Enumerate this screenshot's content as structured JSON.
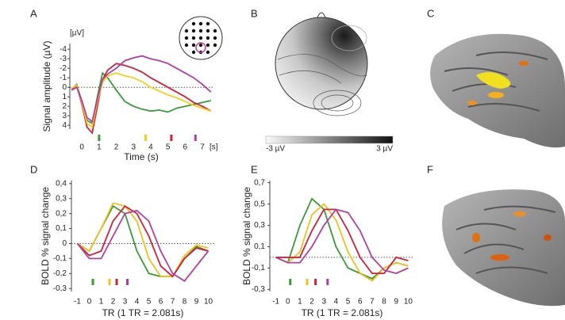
{
  "panel_labels": [
    "A",
    "B",
    "C",
    "D",
    "E",
    "F"
  ],
  "chart_data": [
    {
      "type": "line",
      "x_label": "Time (s)",
      "y_label": "Signal amplitude (µV)",
      "x_unit": "[s]",
      "y_unit": "[µV]",
      "invert_y": true,
      "xlim": [
        -0.7,
        7.6
      ],
      "ylim": [
        -4.6,
        4.4
      ],
      "xticks": [
        0,
        1,
        2,
        3,
        4,
        5,
        6,
        7
      ],
      "yticks": [
        -4,
        -3,
        -2,
        -1,
        0,
        1,
        2,
        3,
        4
      ],
      "x": [
        -0.6,
        -0.3,
        0,
        0.3,
        0.6,
        0.9,
        1.2,
        1.5,
        2,
        2.5,
        3,
        3.5,
        4,
        4.5,
        5,
        5.5,
        6,
        6.5,
        7,
        7.5
      ],
      "series": [
        {
          "color": "#3a9a3a",
          "values": [
            0.2,
            -0.3,
            1.5,
            3.5,
            3.8,
            1,
            -1.5,
            -1,
            0.3,
            1.5,
            2,
            2.3,
            2.5,
            2.4,
            2.6,
            2.2,
            2,
            1.8,
            1.6,
            1.4
          ]
        },
        {
          "color": "#d0203a",
          "values": [
            0.2,
            -0.2,
            1.8,
            4.2,
            4.8,
            2,
            -0.8,
            -1.8,
            -2.5,
            -2.3,
            -2,
            -1.6,
            -1,
            -0.5,
            0,
            0.5,
            1,
            1.6,
            2,
            2.5
          ]
        },
        {
          "color": "#f0d020",
          "values": [
            0.1,
            -0.2,
            1.6,
            3.8,
            4.2,
            1.5,
            -0.5,
            -1.2,
            -1.5,
            -1.2,
            -1,
            -0.6,
            0,
            0.4,
            0.8,
            1.1,
            1.5,
            1.9,
            2.2,
            2.5
          ]
        },
        {
          "color": "#b040a0",
          "values": [
            0.3,
            0,
            1.4,
            3.2,
            3.6,
            1.2,
            -0.8,
            -1.4,
            -2,
            -2.8,
            -3.1,
            -3.3,
            -3,
            -2.8,
            -2.5,
            -2,
            -1.5,
            -1,
            -0.3,
            0.5
          ]
        }
      ],
      "markers": [
        {
          "x": 1,
          "color": "#3a9a3a"
        },
        {
          "x": 3.7,
          "color": "#f0d020"
        },
        {
          "x": 5.2,
          "color": "#d0203a"
        },
        {
          "x": 6.6,
          "color": "#b040a0"
        }
      ]
    },
    {
      "type": "topomap",
      "clim": [
        -3,
        3
      ],
      "colorbar_ticks": [
        {
          "value": -3,
          "label": "-3 µV"
        },
        {
          "value": 3,
          "label": "3 µV"
        }
      ]
    },
    {
      "type": "line",
      "x_label": "TR (1 TR = 2.081s)",
      "y_label": "BOLD % signal change",
      "xlim": [
        -1.5,
        10.5
      ],
      "ylim": [
        -0.32,
        0.42
      ],
      "xticks": [
        -1,
        0,
        1,
        2,
        3,
        4,
        5,
        6,
        7,
        8,
        9,
        10
      ],
      "yticks": [
        {
          "value": 0.4,
          "label": "0,4"
        },
        {
          "value": 0.3,
          "label": "0,3"
        },
        {
          "value": 0.2,
          "label": "0,2"
        },
        {
          "value": 0.1,
          "label": "0,1"
        },
        0,
        {
          "value": -0.1,
          "label": "-0,1"
        },
        {
          "value": -0.2,
          "label": "-0,2"
        },
        {
          "value": -0.3,
          "label": "-0,3"
        }
      ],
      "x": [
        -1,
        0,
        1,
        2,
        3,
        4,
        5,
        6,
        7,
        8,
        9,
        10
      ],
      "series": [
        {
          "color": "#3a9a3a",
          "values": [
            0,
            -0.05,
            0.1,
            0.25,
            0.2,
            -0.05,
            -0.2,
            -0.22,
            -0.22,
            -0.1,
            -0.02,
            -0.05
          ]
        },
        {
          "color": "#f0c020",
          "values": [
            0,
            -0.05,
            0.1,
            0.27,
            0.25,
            0.15,
            -0.1,
            -0.22,
            -0.22,
            -0.08,
            -0.01,
            -0.03
          ]
        },
        {
          "color": "#d0203a",
          "values": [
            0,
            -0.08,
            -0.05,
            0.15,
            0.25,
            0.2,
            0.05,
            -0.15,
            -0.22,
            -0.1,
            -0.03,
            -0.05
          ]
        },
        {
          "color": "#b040a0",
          "values": [
            0,
            -0.1,
            -0.1,
            0.05,
            0.2,
            0.22,
            0.15,
            -0.05,
            -0.2,
            -0.25,
            -0.15,
            -0.05
          ]
        }
      ],
      "markers": [
        {
          "x": 0.3,
          "color": "#3a9a3a"
        },
        {
          "x": 1.7,
          "color": "#f0c020"
        },
        {
          "x": 2.3,
          "color": "#d0203a"
        },
        {
          "x": 3.2,
          "color": "#b040a0"
        }
      ]
    },
    {
      "type": "line",
      "x_label": "TR (1 TR = 2.081s)",
      "y_label": "BOLD % signal change",
      "xlim": [
        -1.5,
        10.5
      ],
      "ylim": [
        -0.32,
        0.72
      ],
      "xticks": [
        -1,
        0,
        1,
        2,
        3,
        4,
        5,
        6,
        7,
        8,
        9,
        10
      ],
      "yticks": [
        {
          "value": 0.7,
          "label": "0,7"
        },
        {
          "value": 0.5,
          "label": "0,5"
        },
        {
          "value": 0.3,
          "label": "0,3"
        },
        {
          "value": 0.1,
          "label": "0,1"
        },
        {
          "value": -0.1,
          "label": "-0,1"
        },
        {
          "value": -0.3,
          "label": "-0,3"
        }
      ],
      "x": [
        -1,
        0,
        1,
        2,
        3,
        4,
        5,
        6,
        7,
        8,
        9,
        10
      ],
      "series": [
        {
          "color": "#3a9a3a",
          "values": [
            0,
            -0.05,
            0.3,
            0.55,
            0.45,
            0.1,
            -0.1,
            -0.15,
            -0.2,
            -0.1,
            -0.05,
            -0.08
          ]
        },
        {
          "color": "#f0c020",
          "values": [
            0,
            -0.05,
            0.05,
            0.4,
            0.5,
            0.35,
            0.05,
            -0.15,
            -0.22,
            -0.1,
            -0.05,
            -0.08
          ]
        },
        {
          "color": "#d0203a",
          "values": [
            0,
            0,
            0,
            0.25,
            0.45,
            0.45,
            0.25,
            0,
            -0.15,
            -0.15,
            0,
            -0.03
          ]
        },
        {
          "color": "#b040a0",
          "values": [
            0,
            -0.05,
            -0.05,
            0.1,
            0.3,
            0.45,
            0.42,
            0.25,
            0,
            -0.12,
            -0.15,
            -0.1
          ]
        }
      ],
      "markers": [
        {
          "x": 0.2,
          "color": "#3a9a3a"
        },
        {
          "x": 1.6,
          "color": "#f0c020"
        },
        {
          "x": 2.3,
          "color": "#d0203a"
        },
        {
          "x": 3.3,
          "color": "#b040a0"
        }
      ]
    }
  ]
}
